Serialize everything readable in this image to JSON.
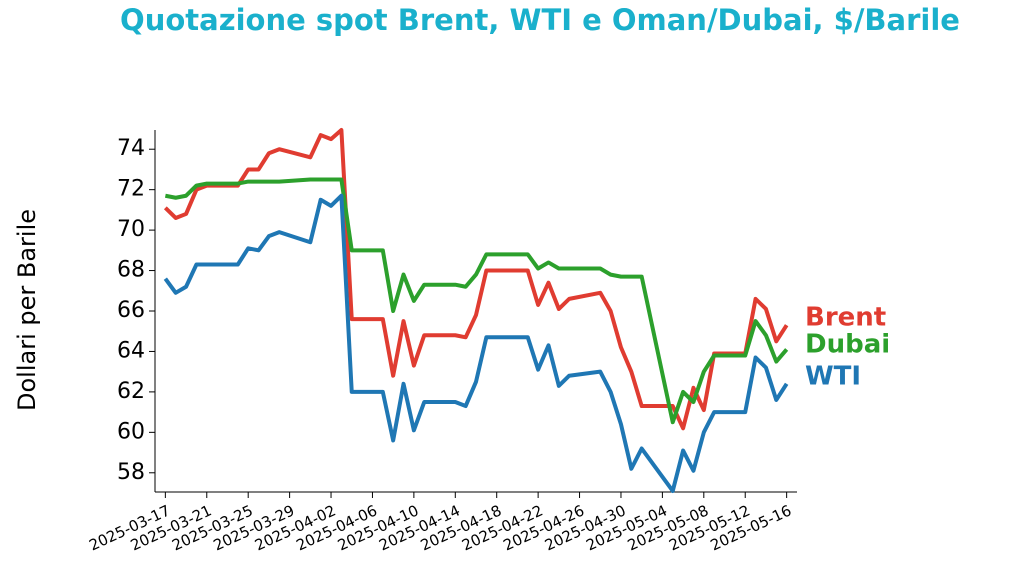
{
  "chart_data": {
    "type": "line",
    "title": "Quotazione spot Brent, WTI e Oman/Dubai, $/Barile",
    "y_label": "Dollari per Barile",
    "x": [
      "2025-03-17",
      "2025-03-18",
      "2025-03-19",
      "2025-03-20",
      "2025-03-21",
      "2025-03-24",
      "2025-03-25",
      "2025-03-26",
      "2025-03-27",
      "2025-03-28",
      "2025-03-31",
      "2025-04-01",
      "2025-04-02",
      "2025-04-03",
      "2025-04-04",
      "2025-04-07",
      "2025-04-08",
      "2025-04-09",
      "2025-04-10",
      "2025-04-11",
      "2025-04-14",
      "2025-04-15",
      "2025-04-16",
      "2025-04-17",
      "2025-04-21",
      "2025-04-22",
      "2025-04-23",
      "2025-04-24",
      "2025-04-25",
      "2025-04-28",
      "2025-04-29",
      "2025-04-30",
      "2025-05-01",
      "2025-05-02",
      "2025-05-05",
      "2025-05-06",
      "2025-05-07",
      "2025-05-08",
      "2025-05-09",
      "2025-05-12",
      "2025-05-13",
      "2025-05-14",
      "2025-05-15",
      "2025-05-16"
    ],
    "series": [
      {
        "name": "Brent",
        "color": "#e03c31",
        "values": [
          71.1,
          70.6,
          70.8,
          72.0,
          72.2,
          72.2,
          73.0,
          73.0,
          73.8,
          74.0,
          73.6,
          74.7,
          74.5,
          74.95,
          65.6,
          65.6,
          62.8,
          65.5,
          63.3,
          64.8,
          64.8,
          64.7,
          65.8,
          68.0,
          68.0,
          66.3,
          67.4,
          66.1,
          66.6,
          66.9,
          66.0,
          64.2,
          63.0,
          61.3,
          61.3,
          60.2,
          62.2,
          61.1,
          63.9,
          63.9,
          66.6,
          66.1,
          64.5,
          65.3
        ]
      },
      {
        "name": "Dubai",
        "color": "#2ca02c",
        "values": [
          71.7,
          71.6,
          71.7,
          72.2,
          72.3,
          72.3,
          72.4,
          72.4,
          72.4,
          72.4,
          72.5,
          72.5,
          72.5,
          72.5,
          69.0,
          69.0,
          66.0,
          67.8,
          66.5,
          67.3,
          67.3,
          67.2,
          67.8,
          68.8,
          68.8,
          68.1,
          68.4,
          68.1,
          68.1,
          68.1,
          67.8,
          67.7,
          67.7,
          67.7,
          60.5,
          62.0,
          61.5,
          63.0,
          63.8,
          63.8,
          65.5,
          64.8,
          63.5,
          64.1
        ]
      },
      {
        "name": "WTI",
        "color": "#1f77b4",
        "values": [
          67.6,
          66.9,
          67.2,
          68.3,
          68.3,
          68.3,
          69.1,
          69.0,
          69.7,
          69.9,
          69.4,
          71.5,
          71.2,
          71.7,
          62.0,
          62.0,
          59.6,
          62.4,
          60.1,
          61.5,
          61.5,
          61.3,
          62.5,
          64.7,
          64.7,
          63.1,
          64.3,
          62.3,
          62.8,
          63.0,
          62.0,
          60.4,
          58.2,
          59.2,
          57.1,
          59.1,
          58.1,
          60.0,
          61.0,
          61.0,
          63.7,
          63.2,
          61.6,
          62.4
        ]
      }
    ],
    "xlim": [
      "2025-03-16",
      "2025-05-17"
    ],
    "xticks": [
      "2025-03-17",
      "2025-03-21",
      "2025-03-25",
      "2025-03-29",
      "2025-04-02",
      "2025-04-06",
      "2025-04-10",
      "2025-04-14",
      "2025-04-18",
      "2025-04-22",
      "2025-04-26",
      "2025-04-30",
      "2025-05-04",
      "2025-05-08",
      "2025-05-12",
      "2025-05-16"
    ],
    "ylim": [
      57.05,
      74.95
    ],
    "yticks": [
      58,
      60,
      62,
      64,
      66,
      68,
      70,
      72,
      74
    ],
    "grid": false
  }
}
